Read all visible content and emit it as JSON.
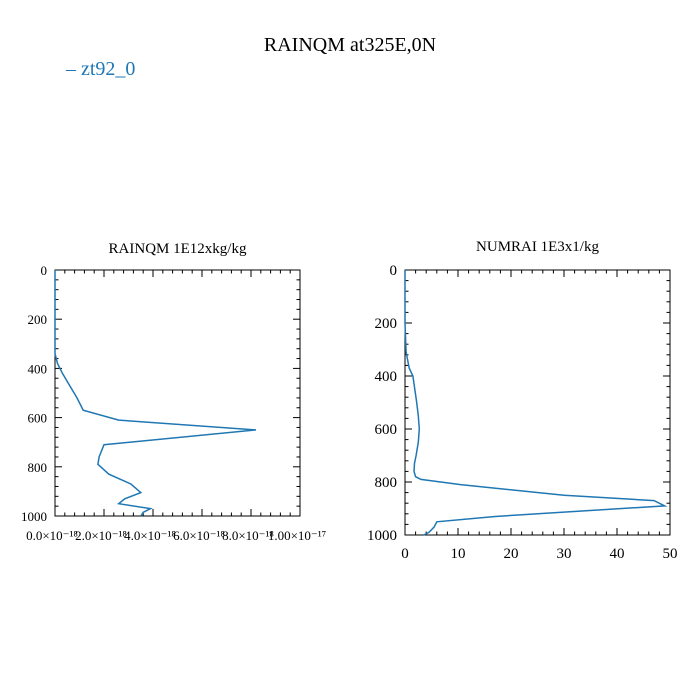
{
  "title": "RAINQM at325E,0N",
  "legend": {
    "label": "zt92_0",
    "color": "#1f77b4"
  },
  "chart_data": [
    {
      "type": "line",
      "title": "RAINQM  1E12xkg/kg",
      "xlabel": "",
      "ylabel": "",
      "xlim": [
        0,
        1e-17
      ],
      "ylim": [
        1000,
        0
      ],
      "xticks": [
        0,
        2e-18,
        4e-18,
        6e-18,
        8e-18,
        1e-17
      ],
      "xtick_labels": [
        "0.0×10⁻¹⁸",
        "2.0×10⁻¹⁸",
        "4.0×10⁻¹⁸",
        "6.0×10⁻¹⁸",
        "8.0×10⁻¹⁸",
        "1.00×10⁻¹⁷"
      ],
      "yticks": [
        0,
        200,
        400,
        600,
        800,
        1000
      ],
      "ytick_labels": [
        "0",
        "200",
        "400",
        "600",
        "800",
        "1000"
      ],
      "series": [
        {
          "name": "zt92_0",
          "color": "#1f77b4",
          "x": [
            0,
            0,
            0,
            0,
            1e-19,
            3e-19,
            6e-19,
            9e-19,
            1.15e-18,
            2.6e-18,
            8.2e-18,
            2e-18,
            1.8e-18,
            1.75e-18,
            2.2e-18,
            3.1e-18,
            3.5e-18,
            2.85e-18,
            2.6e-18,
            3.9e-18,
            3.6e-18,
            3.5e-18
          ],
          "y": [
            0,
            200,
            300,
            340,
            380,
            420,
            470,
            520,
            570,
            610,
            650,
            710,
            760,
            790,
            830,
            870,
            905,
            930,
            950,
            970,
            985,
            1000
          ]
        }
      ]
    },
    {
      "type": "line",
      "title": "NUMRAI  1E3x1/kg",
      "xlabel": "",
      "ylabel": "",
      "xlim": [
        0,
        50
      ],
      "ylim": [
        1000,
        0
      ],
      "xticks": [
        0,
        10,
        20,
        30,
        40,
        50
      ],
      "xtick_labels": [
        "0",
        "10",
        "20",
        "30",
        "40",
        "50"
      ],
      "yticks": [
        0,
        200,
        400,
        600,
        800,
        1000
      ],
      "ytick_labels": [
        "0",
        "200",
        "400",
        "600",
        "800",
        "1000"
      ],
      "series": [
        {
          "name": "zt92_0",
          "color": "#1f77b4",
          "x": [
            0,
            0,
            0.2,
            0.8,
            1.5,
            2.2,
            2.5,
            2.7,
            2.5,
            2.1,
            1.8,
            1.7,
            2.0,
            3.0,
            10.5,
            30,
            47,
            49,
            33,
            17,
            6,
            5.5,
            4.5,
            3.5
          ],
          "y": [
            0,
            200,
            310,
            370,
            400,
            500,
            550,
            600,
            650,
            700,
            730,
            760,
            780,
            790,
            810,
            850,
            870,
            890,
            910,
            930,
            950,
            970,
            990,
            1000
          ]
        }
      ]
    }
  ]
}
